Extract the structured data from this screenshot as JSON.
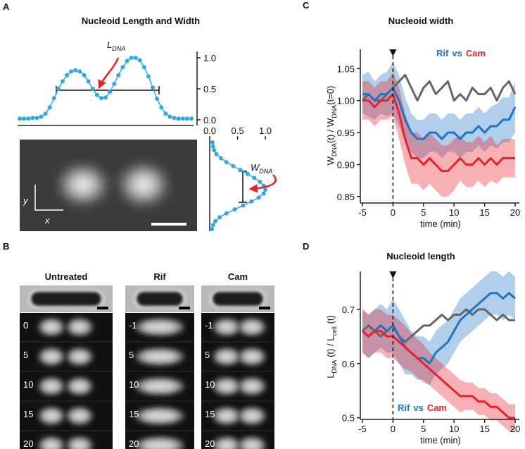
{
  "chart_data": [
    {
      "type": "profile",
      "label": "A",
      "title": "Nucleoid Length and Width",
      "annotation_parts": [
        "L",
        "DNA"
      ],
      "axis_letters": [
        "y",
        "x"
      ],
      "color": "#33a7e0",
      "values": [
        0.02,
        0.02,
        0.02,
        0.03,
        0.03,
        0.05,
        0.1,
        0.2,
        0.35,
        0.5,
        0.62,
        0.72,
        0.78,
        0.8,
        0.78,
        0.72,
        0.62,
        0.5,
        0.4,
        0.35,
        0.36,
        0.45,
        0.58,
        0.72,
        0.85,
        0.95,
        1.0,
        1.0,
        0.96,
        0.85,
        0.7,
        0.52,
        0.34,
        0.2,
        0.1,
        0.05,
        0.03,
        0.02,
        0.02,
        0.02,
        0.02
      ],
      "ylim": [
        0,
        1.1
      ],
      "yticks": [
        {
          "value": 0,
          "label": "0.0"
        },
        0.5,
        {
          "value": 1,
          "label": "1.0"
        }
      ]
    },
    {
      "type": "profile_v",
      "annotation_parts": [
        "W",
        "DNA"
      ],
      "color": "#33a7e0",
      "values": [
        0.05,
        0.06,
        0.08,
        0.12,
        0.2,
        0.3,
        0.42,
        0.55,
        0.68,
        0.8,
        0.9,
        0.97,
        1.0,
        0.97,
        0.88,
        0.75,
        0.6,
        0.45,
        0.3,
        0.18,
        0.1,
        0.06,
        0.04
      ],
      "xlim": [
        0,
        1.1
      ],
      "xticks": [
        {
          "value": 0,
          "label": "0.0"
        },
        0.5,
        {
          "value": 1,
          "label": "1.0"
        }
      ]
    },
    {
      "type": "line",
      "label": "C",
      "title": "Nucleoid width",
      "ylabel_parts": [
        "W",
        "DNA",
        "(t) / W",
        "DNA",
        "(t=0)"
      ],
      "xlabel": "time (min)",
      "legend_joiner": "vs",
      "x": [
        -5,
        -4,
        -3,
        -2,
        -1,
        0,
        1,
        2,
        3,
        4,
        5,
        6,
        7,
        8,
        9,
        10,
        11,
        12,
        13,
        14,
        15,
        16,
        17,
        18,
        19,
        20
      ],
      "series": [
        {
          "color": "#666666",
          "values": [
            1.0,
            1.01,
            1.0,
            1.0,
            1.01,
            1.02,
            1.03,
            1.04,
            1.02,
            1.0,
            1.02,
            1.03,
            1.01,
            1.02,
            1.03,
            1.0,
            1.01,
            1.0,
            1.02,
            1.01,
            1.01,
            1.02,
            1.0,
            1.02,
            1.03,
            1.01
          ]
        },
        {
          "name": "Rif",
          "color": "#1f74c4",
          "values": [
            1.01,
            1.01,
            1.0,
            1.01,
            1.01,
            1.02,
            1.0,
            0.97,
            0.95,
            0.94,
            0.94,
            0.95,
            0.95,
            0.94,
            0.95,
            0.95,
            0.94,
            0.95,
            0.95,
            0.96,
            0.95,
            0.96,
            0.96,
            0.97,
            0.97,
            0.99
          ],
          "error": [
            0.03,
            0.035,
            0.03,
            0.03,
            0.035,
            0.04,
            0.04,
            0.035,
            0.03,
            0.03,
            0.03,
            0.03,
            0.03,
            0.03,
            0.03,
            0.03,
            0.03,
            0.03,
            0.03,
            0.03,
            0.03,
            0.03,
            0.035,
            0.035,
            0.035,
            0.04
          ]
        },
        {
          "name": "Cam",
          "color": "#e8202a",
          "values": [
            1.0,
            1.0,
            0.99,
            1.0,
            1.0,
            1.01,
            0.98,
            0.94,
            0.91,
            0.91,
            0.9,
            0.91,
            0.9,
            0.89,
            0.89,
            0.9,
            0.91,
            0.9,
            0.9,
            0.91,
            0.9,
            0.91,
            0.9,
            0.91,
            0.91,
            0.91
          ],
          "error": [
            0.03,
            0.03,
            0.03,
            0.03,
            0.03,
            0.035,
            0.04,
            0.04,
            0.04,
            0.04,
            0.04,
            0.04,
            0.04,
            0.04,
            0.04,
            0.04,
            0.035,
            0.035,
            0.035,
            0.035,
            0.035,
            0.035,
            0.03,
            0.03,
            0.03,
            0.03
          ]
        }
      ],
      "event_x": 0,
      "xlim": [
        -5,
        20
      ],
      "ylim": [
        0.84,
        1.08
      ],
      "xticks": [
        -5,
        0,
        5,
        10,
        15,
        20
      ],
      "yticks": [
        0.85,
        {
          "value": 0.9,
          "label": "0.90"
        },
        0.95,
        {
          "value": 1,
          "label": "1.00"
        },
        1.05
      ]
    },
    {
      "type": "line",
      "label": "D",
      "title": "Nucleoid length",
      "ylabel_parts": [
        "L",
        "DNA",
        " (t) / L",
        "cell",
        " (t)"
      ],
      "xlabel": "time (min)",
      "legend_joiner": "vs",
      "x": [
        -5,
        -4,
        -3,
        -2,
        -1,
        0,
        1,
        2,
        3,
        4,
        5,
        6,
        7,
        8,
        9,
        10,
        11,
        12,
        13,
        14,
        15,
        16,
        17,
        18,
        19,
        20
      ],
      "series": [
        {
          "color": "#666666",
          "values": [
            0.66,
            0.67,
            0.66,
            0.65,
            0.66,
            0.67,
            0.65,
            0.64,
            0.65,
            0.66,
            0.67,
            0.67,
            0.68,
            0.69,
            0.68,
            0.69,
            0.69,
            0.7,
            0.69,
            0.7,
            0.7,
            0.69,
            0.68,
            0.69,
            0.68,
            0.68
          ]
        },
        {
          "name": "Rif",
          "color": "#1f74c4",
          "values": [
            0.66,
            0.65,
            0.66,
            0.67,
            0.66,
            0.67,
            0.65,
            0.63,
            0.62,
            0.61,
            0.61,
            0.6,
            0.62,
            0.63,
            0.64,
            0.66,
            0.68,
            0.69,
            0.7,
            0.71,
            0.72,
            0.73,
            0.73,
            0.72,
            0.73,
            0.72
          ],
          "error": [
            0.04,
            0.04,
            0.04,
            0.04,
            0.04,
            0.05,
            0.05,
            0.05,
            0.04,
            0.04,
            0.04,
            0.04,
            0.04,
            0.04,
            0.04,
            0.04,
            0.04,
            0.04,
            0.04,
            0.04,
            0.04,
            0.04,
            0.04,
            0.04,
            0.04,
            0.04
          ]
        },
        {
          "name": "Cam",
          "color": "#e8202a",
          "values": [
            0.66,
            0.65,
            0.66,
            0.66,
            0.65,
            0.65,
            0.64,
            0.63,
            0.62,
            0.61,
            0.6,
            0.59,
            0.58,
            0.57,
            0.56,
            0.55,
            0.54,
            0.54,
            0.54,
            0.53,
            0.53,
            0.52,
            0.52,
            0.51,
            0.5,
            0.5
          ],
          "error": [
            0.04,
            0.04,
            0.04,
            0.04,
            0.04,
            0.04,
            0.04,
            0.04,
            0.035,
            0.035,
            0.035,
            0.03,
            0.03,
            0.03,
            0.03,
            0.03,
            0.03,
            0.025,
            0.025,
            0.025,
            0.025,
            0.025,
            0.025,
            0.025,
            0.025,
            0.025
          ]
        }
      ],
      "event_x": 0,
      "xlim": [
        -5,
        20
      ],
      "ylim": [
        0.497,
        0.77
      ],
      "xticks": [
        -5,
        0,
        5,
        10,
        15,
        20
      ],
      "yticks": [
        0.5,
        0.6,
        0.7
      ]
    }
  ],
  "panel_b": {
    "label": "B",
    "columns": [
      {
        "title": "Untreated",
        "times": [
          "0",
          "5",
          "10",
          "15",
          "20"
        ]
      },
      {
        "title": "Rif",
        "times": [
          "-1",
          "5",
          "10",
          "15",
          "20"
        ]
      },
      {
        "title": "Cam",
        "times": [
          "-1",
          "5",
          "10",
          "15",
          "20"
        ]
      }
    ]
  }
}
